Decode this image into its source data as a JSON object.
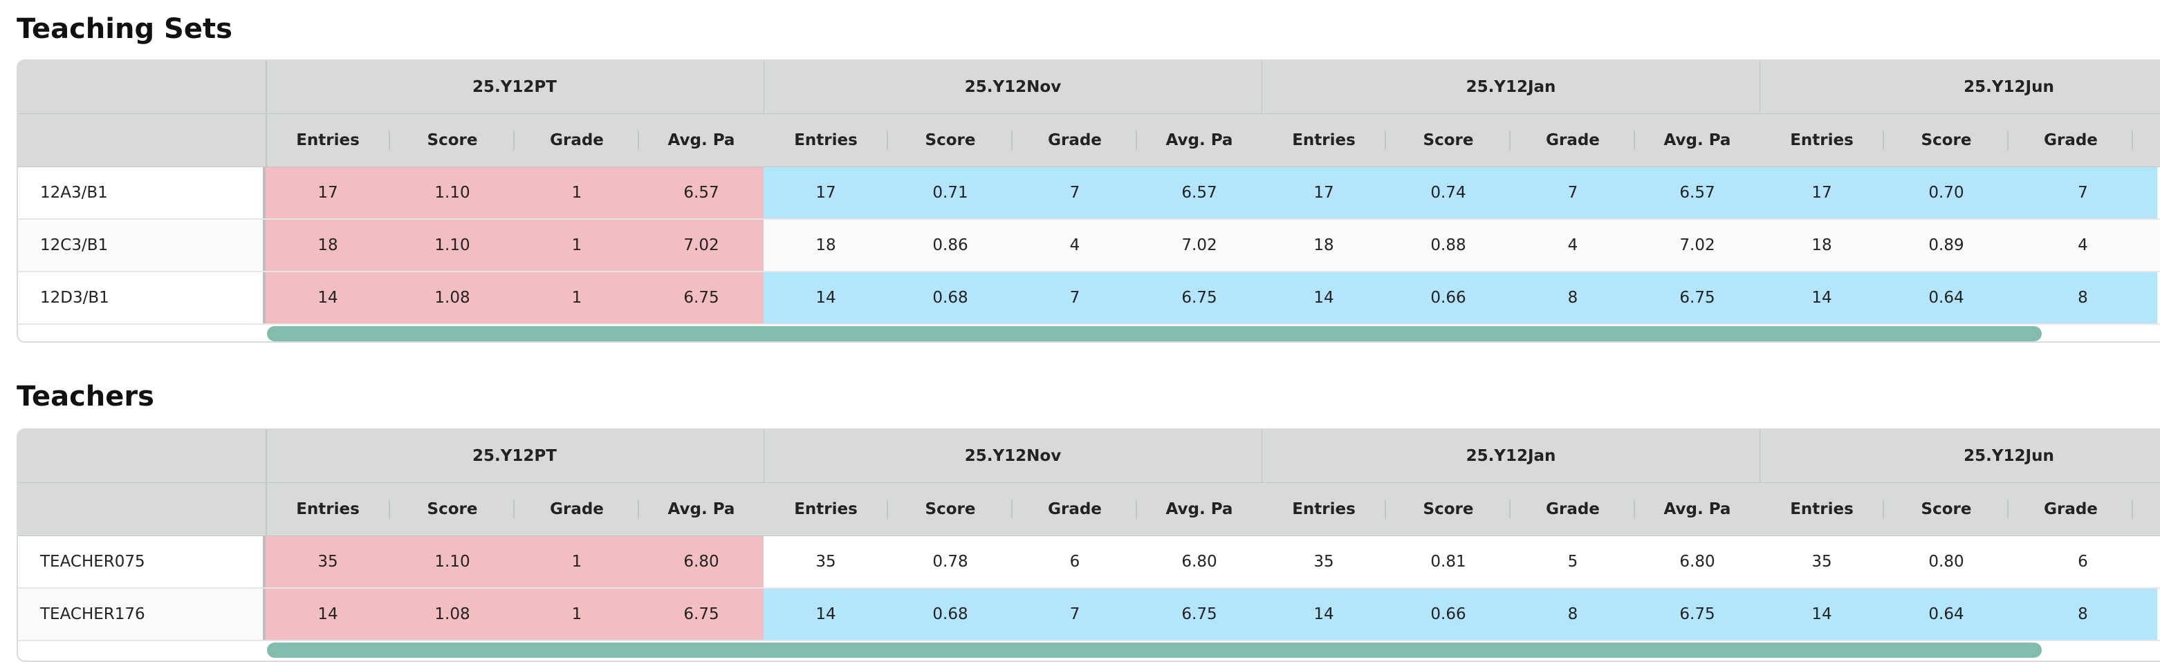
{
  "colors": {
    "header_bg": "#d8dada",
    "pink": "#f2bec1",
    "blue": "#b3e5fc",
    "scrollbar": "#83bcae"
  },
  "teaching_sets": {
    "title": "Teaching Sets",
    "groups": [
      "25.Y12PT",
      "25.Y12Nov",
      "25.Y12Jan",
      "25.Y12Jun"
    ],
    "columns": [
      "Entries",
      "Score",
      "Grade",
      "Avg. Pa",
      "Entries",
      "Score",
      "Grade",
      "Avg. Pa",
      "Entries",
      "Score",
      "Grade",
      "Avg. Pa",
      "Entries",
      "Score",
      "Grade"
    ],
    "rows": [
      {
        "label": "12A3/B1",
        "values": [
          "17",
          "1.10",
          "1",
          "6.57",
          "17",
          "0.71",
          "7",
          "6.57",
          "17",
          "0.74",
          "7",
          "6.57",
          "17",
          "0.70",
          "7"
        ],
        "highlight": "blue"
      },
      {
        "label": "12C3/B1",
        "values": [
          "18",
          "1.10",
          "1",
          "7.02",
          "18",
          "0.86",
          "4",
          "7.02",
          "18",
          "0.88",
          "4",
          "7.02",
          "18",
          "0.89",
          "4"
        ],
        "highlight": "none"
      },
      {
        "label": "12D3/B1",
        "values": [
          "14",
          "1.08",
          "1",
          "6.75",
          "14",
          "0.68",
          "7",
          "6.75",
          "14",
          "0.66",
          "8",
          "6.75",
          "14",
          "0.64",
          "8"
        ],
        "highlight": "blue"
      }
    ]
  },
  "teachers": {
    "title": "Teachers",
    "groups": [
      "25.Y12PT",
      "25.Y12Nov",
      "25.Y12Jan",
      "25.Y12Jun"
    ],
    "columns": [
      "Entries",
      "Score",
      "Grade",
      "Avg. Pa",
      "Entries",
      "Score",
      "Grade",
      "Avg. Pa",
      "Entries",
      "Score",
      "Grade",
      "Avg. Pa",
      "Entries",
      "Score",
      "Grade"
    ],
    "rows": [
      {
        "label": "TEACHER075",
        "values": [
          "35",
          "1.10",
          "1",
          "6.80",
          "35",
          "0.78",
          "6",
          "6.80",
          "35",
          "0.81",
          "5",
          "6.80",
          "35",
          "0.80",
          "6"
        ],
        "highlight": "none"
      },
      {
        "label": "TEACHER176",
        "values": [
          "14",
          "1.08",
          "1",
          "6.75",
          "14",
          "0.68",
          "7",
          "6.75",
          "14",
          "0.66",
          "8",
          "6.75",
          "14",
          "0.64",
          "8"
        ],
        "highlight": "blue"
      }
    ]
  }
}
